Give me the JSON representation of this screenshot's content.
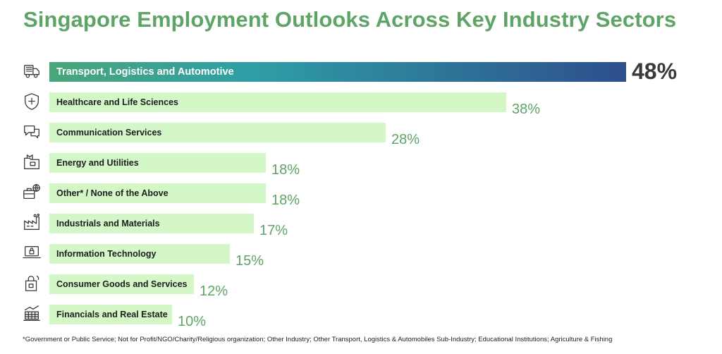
{
  "title": "Singapore Employment Outlooks Across Key Industry Sectors",
  "footnote": "*Government or Public Service; Not for Profit/NGO/Charity/Religious organization; Other Industry; Other Transport, Logistics & Automobiles Sub-Industry; Educational Institutions; Agriculture & Fishing",
  "colors": {
    "title": "#5ea466",
    "bar": "#d4f7c8",
    "highlight_gradient": [
      "#4aa67a",
      "#2f9ea6",
      "#2e4f8c"
    ],
    "value_text": "#5ea466",
    "highlight_value_text": "#3a3a3a"
  },
  "chart_data": {
    "type": "bar",
    "orientation": "horizontal",
    "title": "Singapore Employment Outlooks Across Key Industry Sectors",
    "categories": [
      "Transport, Logistics and Automotive",
      "Healthcare and Life Sciences",
      "Communication Services",
      "Energy and Utilities",
      "Other* / None of the Above",
      "Industrials and Materials",
      "Information Technology",
      "Consumer Goods and Services",
      "Financials and Real Estate"
    ],
    "values": [
      48,
      38,
      28,
      18,
      18,
      17,
      15,
      12,
      10
    ],
    "value_labels": [
      "48%",
      "38%",
      "28%",
      "18%",
      "18%",
      "17%",
      "15%",
      "12%",
      "10%"
    ],
    "icons": [
      "truck-icon",
      "medical-shield-icon",
      "chat-bubbles-icon",
      "energy-folder-icon",
      "briefcase-globe-icon",
      "factory-icon",
      "laptop-lock-icon",
      "shopping-bag-icon",
      "finance-chart-icon"
    ],
    "highlight_index": 0,
    "xlim": [
      0,
      48
    ],
    "grid": false,
    "legend": "none"
  }
}
